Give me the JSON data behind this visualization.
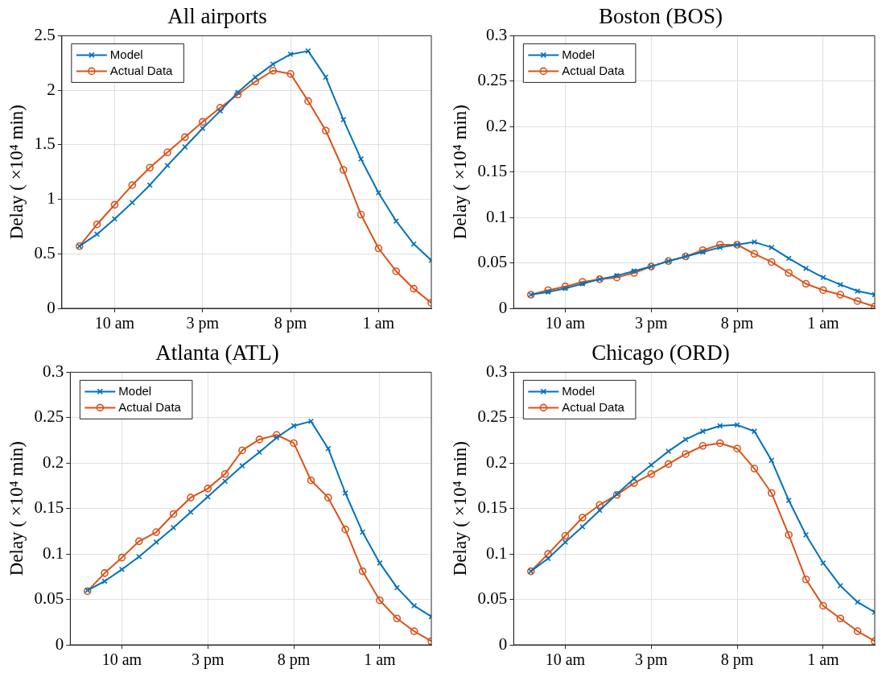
{
  "chart_data": [
    {
      "type": "line",
      "title": "All airports",
      "ylabel": "Delay ( ×10⁴ min)",
      "categories": [
        null,
        null,
        "10 am",
        null,
        null,
        null,
        null,
        "3 pm",
        null,
        null,
        null,
        null,
        "8 pm",
        null,
        null,
        null,
        null,
        "1 am",
        null,
        null,
        null
      ],
      "ylim": [
        0,
        2.5
      ],
      "yticks": [
        0,
        0.5,
        1,
        1.5,
        2,
        2.5
      ],
      "grid": true,
      "legend": "top left",
      "line_style": "solid",
      "series": [
        {
          "name": "Model",
          "color": "#0072bd",
          "marker": "cross",
          "values": [
            0.57,
            0.68,
            0.82,
            0.97,
            1.13,
            1.31,
            1.48,
            1.65,
            1.81,
            1.98,
            2.12,
            2.24,
            2.33,
            2.36,
            2.12,
            1.73,
            1.37,
            1.06,
            0.8,
            0.59,
            0.44
          ]
        },
        {
          "name": "Actual Data",
          "color": "#d95319",
          "marker": "circle",
          "values": [
            0.57,
            0.77,
            0.95,
            1.13,
            1.29,
            1.43,
            1.57,
            1.71,
            1.84,
            1.96,
            2.08,
            2.18,
            2.15,
            1.9,
            1.63,
            1.27,
            0.86,
            0.55,
            0.34,
            0.18,
            0.05
          ]
        }
      ]
    },
    {
      "type": "line",
      "title": "Boston (BOS)",
      "ylabel": "Delay ( ×10⁴ min)",
      "categories": [
        null,
        null,
        "10 am",
        null,
        null,
        null,
        null,
        "3 pm",
        null,
        null,
        null,
        null,
        "8 pm",
        null,
        null,
        null,
        null,
        "1 am",
        null,
        null,
        null
      ],
      "ylim": [
        0,
        0.3
      ],
      "yticks": [
        0,
        0.05,
        0.1,
        0.15,
        0.2,
        0.25,
        0.3
      ],
      "grid": true,
      "legend": "top left",
      "line_style": "solid",
      "series": [
        {
          "name": "Model",
          "color": "#0072bd",
          "marker": "cross",
          "values": [
            0.015,
            0.018,
            0.022,
            0.027,
            0.032,
            0.036,
            0.041,
            0.046,
            0.052,
            0.057,
            0.062,
            0.067,
            0.07,
            0.073,
            0.067,
            0.055,
            0.044,
            0.034,
            0.026,
            0.019,
            0.015
          ]
        },
        {
          "name": "Actual Data",
          "color": "#d95319",
          "marker": "circle",
          "values": [
            0.015,
            0.02,
            0.024,
            0.029,
            0.032,
            0.034,
            0.039,
            0.046,
            0.052,
            0.057,
            0.064,
            0.07,
            0.07,
            0.06,
            0.051,
            0.039,
            0.027,
            0.02,
            0.015,
            0.008,
            0.002
          ]
        }
      ]
    },
    {
      "type": "line",
      "title": "Atlanta (ATL)",
      "ylabel": "Delay ( ×10⁴ min)",
      "categories": [
        null,
        null,
        "10 am",
        null,
        null,
        null,
        null,
        "3 pm",
        null,
        null,
        null,
        null,
        "8 pm",
        null,
        null,
        null,
        null,
        "1 am",
        null,
        null,
        null
      ],
      "ylim": [
        0,
        0.3
      ],
      "yticks": [
        0,
        0.05,
        0.1,
        0.15,
        0.2,
        0.25,
        0.3
      ],
      "grid": true,
      "legend": "top left",
      "line_style": "solid",
      "series": [
        {
          "name": "Model",
          "color": "#0072bd",
          "marker": "cross",
          "values": [
            0.06,
            0.07,
            0.083,
            0.097,
            0.113,
            0.129,
            0.146,
            0.163,
            0.18,
            0.197,
            0.212,
            0.228,
            0.241,
            0.246,
            0.216,
            0.167,
            0.124,
            0.09,
            0.063,
            0.043,
            0.031
          ]
        },
        {
          "name": "Actual Data",
          "color": "#d95319",
          "marker": "circle",
          "values": [
            0.059,
            0.079,
            0.096,
            0.114,
            0.124,
            0.144,
            0.162,
            0.172,
            0.188,
            0.214,
            0.226,
            0.231,
            0.222,
            0.181,
            0.162,
            0.127,
            0.081,
            0.049,
            0.029,
            0.015,
            0.004
          ]
        }
      ]
    },
    {
      "type": "line",
      "title": "Chicago (ORD)",
      "ylabel": "Delay ( ×10⁴ min)",
      "categories": [
        null,
        null,
        "10 am",
        null,
        null,
        null,
        null,
        "3 pm",
        null,
        null,
        null,
        null,
        "8 pm",
        null,
        null,
        null,
        null,
        "1 am",
        null,
        null,
        null
      ],
      "ylim": [
        0,
        0.3
      ],
      "yticks": [
        0,
        0.05,
        0.1,
        0.15,
        0.2,
        0.25,
        0.3
      ],
      "grid": true,
      "legend": "top left",
      "line_style": "solid",
      "series": [
        {
          "name": "Model",
          "color": "#0072bd",
          "marker": "cross",
          "values": [
            0.081,
            0.095,
            0.113,
            0.13,
            0.148,
            0.166,
            0.183,
            0.198,
            0.213,
            0.226,
            0.235,
            0.241,
            0.242,
            0.235,
            0.203,
            0.159,
            0.121,
            0.09,
            0.065,
            0.047,
            0.036
          ]
        },
        {
          "name": "Actual Data",
          "color": "#d95319",
          "marker": "circle",
          "values": [
            0.081,
            0.1,
            0.12,
            0.14,
            0.154,
            0.165,
            0.178,
            0.188,
            0.199,
            0.21,
            0.219,
            0.222,
            0.216,
            0.194,
            0.167,
            0.121,
            0.072,
            0.043,
            0.029,
            0.015,
            0.004
          ]
        }
      ]
    }
  ]
}
